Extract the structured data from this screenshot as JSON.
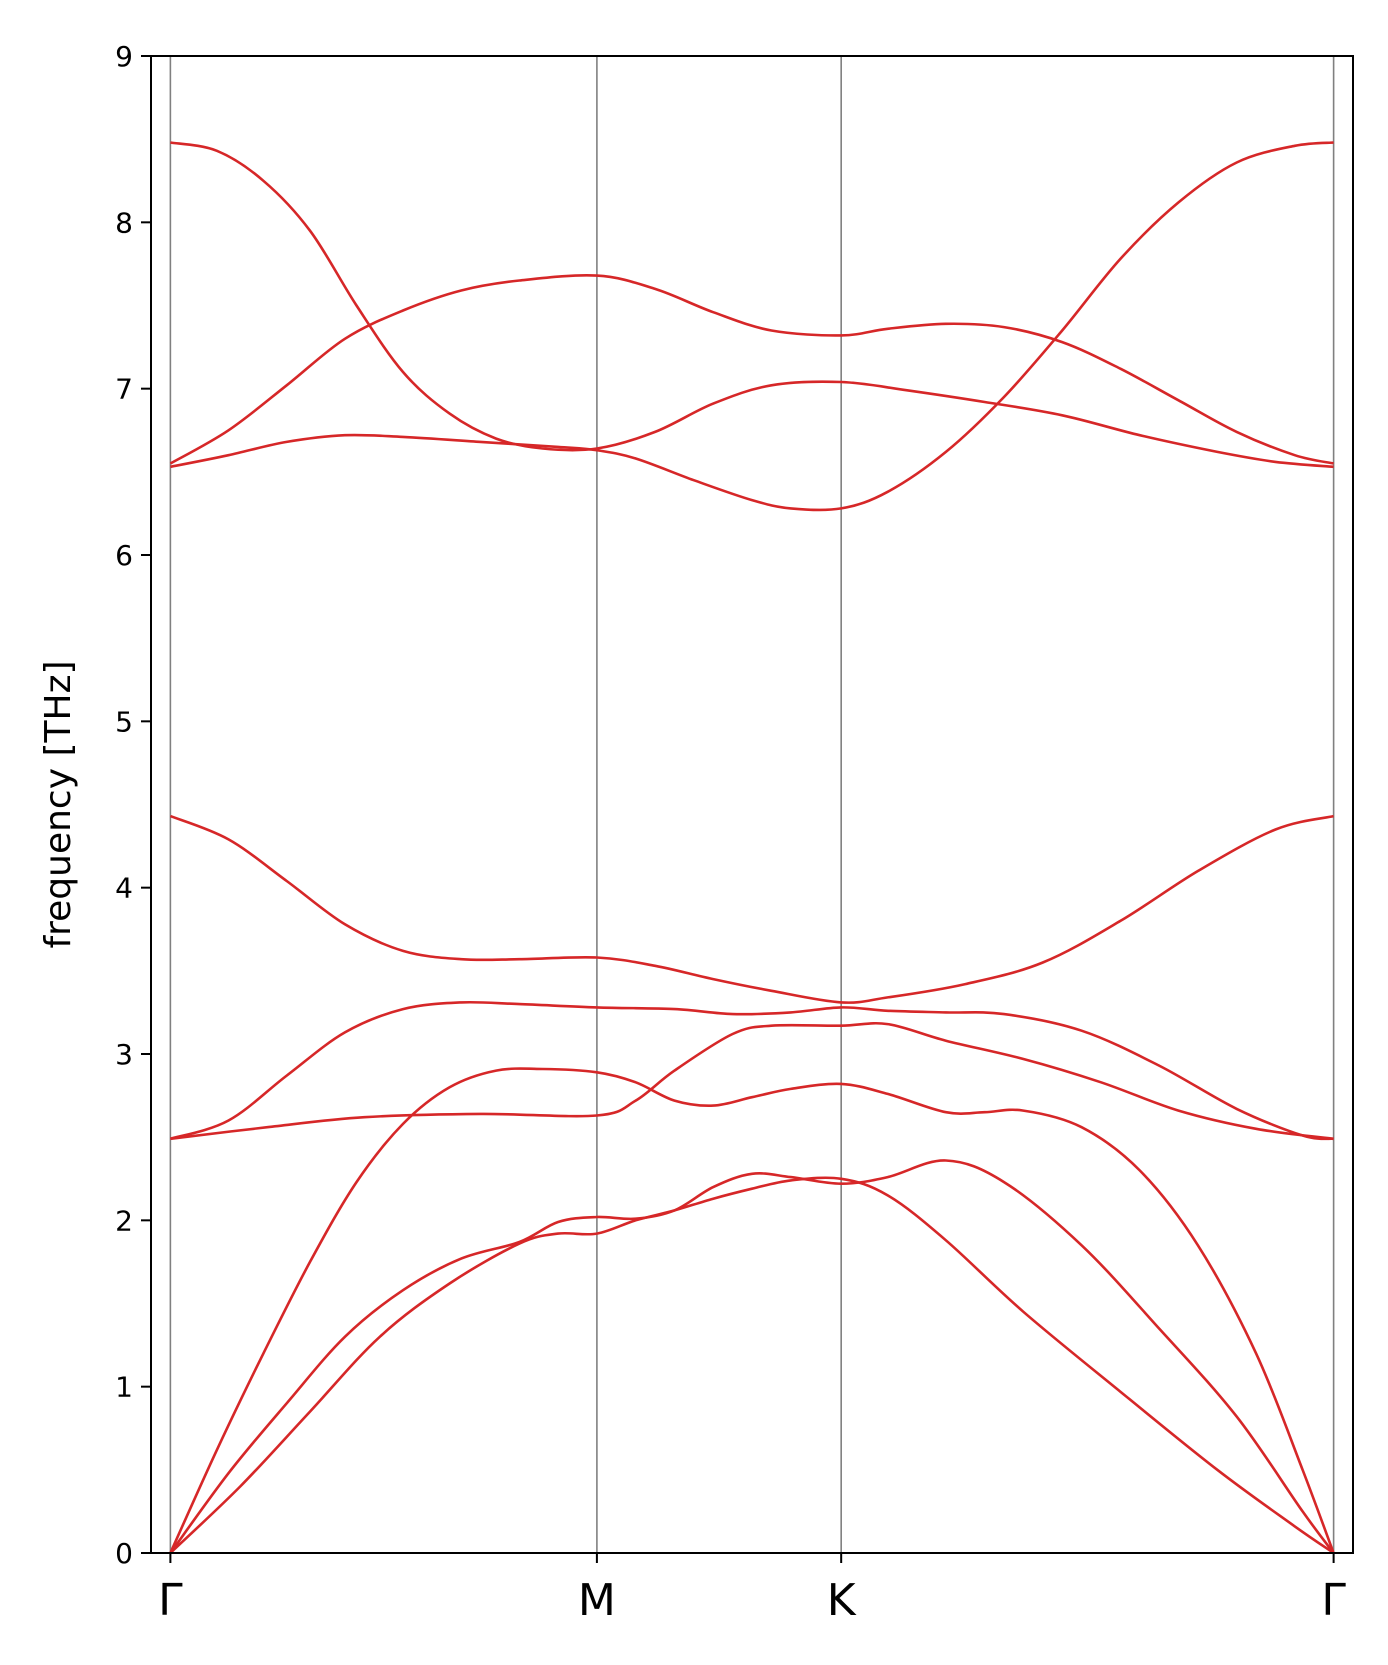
{
  "chart_data": {
    "type": "line",
    "title": "",
    "xlabel": "",
    "ylabel": "frequency [THz]",
    "ylim": [
      0,
      9
    ],
    "yticks": [
      0,
      1,
      2,
      3,
      4,
      5,
      6,
      7,
      8,
      9
    ],
    "xlim": [
      -0.05,
      3.05
    ],
    "kpoints": [
      {
        "label": "Γ",
        "x": 0
      },
      {
        "label": "M",
        "x": 1.1
      },
      {
        "label": "K",
        "x": 1.73
      },
      {
        "label": "Γ",
        "x": 3.0
      }
    ],
    "line_color": "#d62728",
    "vline_color": "#808080",
    "grid": false,
    "series": [
      {
        "values": [
          [
            0,
            0
          ],
          [
            0.18,
            0.4
          ],
          [
            0.36,
            0.85
          ],
          [
            0.54,
            1.3
          ],
          [
            0.72,
            1.62
          ],
          [
            0.9,
            1.86
          ],
          [
            1.0,
            1.92
          ],
          [
            1.1,
            1.92
          ],
          [
            1.2,
            2.0
          ],
          [
            1.3,
            2.06
          ],
          [
            1.4,
            2.13
          ],
          [
            1.5,
            2.19
          ],
          [
            1.6,
            2.24
          ],
          [
            1.73,
            2.25
          ],
          [
            1.85,
            2.15
          ],
          [
            2.0,
            1.88
          ],
          [
            2.2,
            1.45
          ],
          [
            2.45,
            0.97
          ],
          [
            2.7,
            0.5
          ],
          [
            2.9,
            0.16
          ],
          [
            3.0,
            0
          ]
        ]
      },
      {
        "values": [
          [
            0,
            0
          ],
          [
            0.15,
            0.48
          ],
          [
            0.3,
            0.9
          ],
          [
            0.45,
            1.3
          ],
          [
            0.6,
            1.58
          ],
          [
            0.75,
            1.77
          ],
          [
            0.9,
            1.87
          ],
          [
            1.0,
            1.99
          ],
          [
            1.1,
            2.02
          ],
          [
            1.2,
            2.01
          ],
          [
            1.3,
            2.06
          ],
          [
            1.4,
            2.2
          ],
          [
            1.5,
            2.28
          ],
          [
            1.6,
            2.26
          ],
          [
            1.73,
            2.22
          ],
          [
            1.85,
            2.26
          ],
          [
            2.0,
            2.36
          ],
          [
            2.15,
            2.23
          ],
          [
            2.35,
            1.85
          ],
          [
            2.55,
            1.35
          ],
          [
            2.75,
            0.82
          ],
          [
            2.92,
            0.25
          ],
          [
            3.0,
            0
          ]
        ]
      },
      {
        "values": [
          [
            0,
            0
          ],
          [
            0.12,
            0.62
          ],
          [
            0.24,
            1.2
          ],
          [
            0.36,
            1.75
          ],
          [
            0.48,
            2.23
          ],
          [
            0.6,
            2.58
          ],
          [
            0.72,
            2.8
          ],
          [
            0.84,
            2.9
          ],
          [
            0.96,
            2.91
          ],
          [
            1.1,
            2.89
          ],
          [
            1.2,
            2.83
          ],
          [
            1.3,
            2.72
          ],
          [
            1.4,
            2.69
          ],
          [
            1.5,
            2.74
          ],
          [
            1.6,
            2.79
          ],
          [
            1.73,
            2.82
          ],
          [
            1.85,
            2.76
          ],
          [
            2.0,
            2.65
          ],
          [
            2.1,
            2.65
          ],
          [
            2.2,
            2.66
          ],
          [
            2.35,
            2.56
          ],
          [
            2.5,
            2.3
          ],
          [
            2.65,
            1.85
          ],
          [
            2.8,
            1.2
          ],
          [
            2.92,
            0.5
          ],
          [
            3.0,
            0
          ]
        ]
      },
      {
        "values": [
          [
            0,
            2.49
          ],
          [
            0.25,
            2.56
          ],
          [
            0.5,
            2.62
          ],
          [
            0.8,
            2.64
          ],
          [
            1.1,
            2.63
          ],
          [
            1.2,
            2.72
          ],
          [
            1.3,
            2.9
          ],
          [
            1.45,
            3.12
          ],
          [
            1.55,
            3.17
          ],
          [
            1.73,
            3.17
          ],
          [
            1.85,
            3.18
          ],
          [
            2.0,
            3.08
          ],
          [
            2.2,
            2.97
          ],
          [
            2.4,
            2.83
          ],
          [
            2.6,
            2.66
          ],
          [
            2.8,
            2.55
          ],
          [
            3.0,
            2.49
          ]
        ]
      },
      {
        "values": [
          [
            0,
            2.49
          ],
          [
            0.15,
            2.6
          ],
          [
            0.3,
            2.87
          ],
          [
            0.45,
            3.13
          ],
          [
            0.6,
            3.27
          ],
          [
            0.75,
            3.31
          ],
          [
            0.9,
            3.3
          ],
          [
            1.1,
            3.28
          ],
          [
            1.3,
            3.27
          ],
          [
            1.45,
            3.24
          ],
          [
            1.6,
            3.25
          ],
          [
            1.73,
            3.28
          ],
          [
            1.85,
            3.26
          ],
          [
            2.0,
            3.25
          ],
          [
            2.15,
            3.24
          ],
          [
            2.35,
            3.14
          ],
          [
            2.55,
            2.93
          ],
          [
            2.75,
            2.67
          ],
          [
            2.92,
            2.51
          ],
          [
            3.0,
            2.49
          ]
        ]
      },
      {
        "values": [
          [
            0,
            4.43
          ],
          [
            0.15,
            4.29
          ],
          [
            0.3,
            4.04
          ],
          [
            0.45,
            3.78
          ],
          [
            0.6,
            3.62
          ],
          [
            0.75,
            3.57
          ],
          [
            0.9,
            3.57
          ],
          [
            1.1,
            3.58
          ],
          [
            1.25,
            3.53
          ],
          [
            1.4,
            3.45
          ],
          [
            1.55,
            3.38
          ],
          [
            1.73,
            3.31
          ],
          [
            1.85,
            3.34
          ],
          [
            2.05,
            3.42
          ],
          [
            2.25,
            3.55
          ],
          [
            2.45,
            3.8
          ],
          [
            2.65,
            4.1
          ],
          [
            2.85,
            4.35
          ],
          [
            3.0,
            4.43
          ]
        ]
      },
      {
        "values": [
          [
            0,
            6.53
          ],
          [
            0.15,
            6.6
          ],
          [
            0.3,
            6.68
          ],
          [
            0.45,
            6.72
          ],
          [
            0.6,
            6.71
          ],
          [
            0.8,
            6.68
          ],
          [
            1.0,
            6.65
          ],
          [
            1.1,
            6.63
          ],
          [
            1.2,
            6.58
          ],
          [
            1.35,
            6.45
          ],
          [
            1.5,
            6.33
          ],
          [
            1.6,
            6.28
          ],
          [
            1.73,
            6.28
          ],
          [
            1.85,
            6.38
          ],
          [
            2.0,
            6.62
          ],
          [
            2.15,
            6.95
          ],
          [
            2.3,
            7.35
          ],
          [
            2.45,
            7.78
          ],
          [
            2.6,
            8.12
          ],
          [
            2.75,
            8.36
          ],
          [
            2.9,
            8.46
          ],
          [
            3.0,
            8.48
          ]
        ]
      },
      {
        "values": [
          [
            0,
            6.55
          ],
          [
            0.15,
            6.75
          ],
          [
            0.3,
            7.02
          ],
          [
            0.45,
            7.3
          ],
          [
            0.6,
            7.47
          ],
          [
            0.75,
            7.59
          ],
          [
            0.9,
            7.65
          ],
          [
            1.1,
            7.68
          ],
          [
            1.25,
            7.6
          ],
          [
            1.4,
            7.46
          ],
          [
            1.55,
            7.35
          ],
          [
            1.73,
            7.32
          ],
          [
            1.85,
            7.36
          ],
          [
            2.0,
            7.39
          ],
          [
            2.15,
            7.37
          ],
          [
            2.3,
            7.28
          ],
          [
            2.45,
            7.12
          ],
          [
            2.6,
            6.93
          ],
          [
            2.75,
            6.74
          ],
          [
            2.9,
            6.6
          ],
          [
            3.0,
            6.55
          ]
        ]
      },
      {
        "values": [
          [
            0,
            8.48
          ],
          [
            0.12,
            8.43
          ],
          [
            0.24,
            8.25
          ],
          [
            0.36,
            7.95
          ],
          [
            0.48,
            7.5
          ],
          [
            0.6,
            7.1
          ],
          [
            0.72,
            6.85
          ],
          [
            0.84,
            6.7
          ],
          [
            0.96,
            6.64
          ],
          [
            1.1,
            6.64
          ],
          [
            1.25,
            6.74
          ],
          [
            1.4,
            6.91
          ],
          [
            1.55,
            7.02
          ],
          [
            1.73,
            7.04
          ],
          [
            1.9,
            6.99
          ],
          [
            2.1,
            6.92
          ],
          [
            2.3,
            6.84
          ],
          [
            2.5,
            6.72
          ],
          [
            2.7,
            6.62
          ],
          [
            2.85,
            6.56
          ],
          [
            3.0,
            6.53
          ]
        ]
      }
    ]
  }
}
